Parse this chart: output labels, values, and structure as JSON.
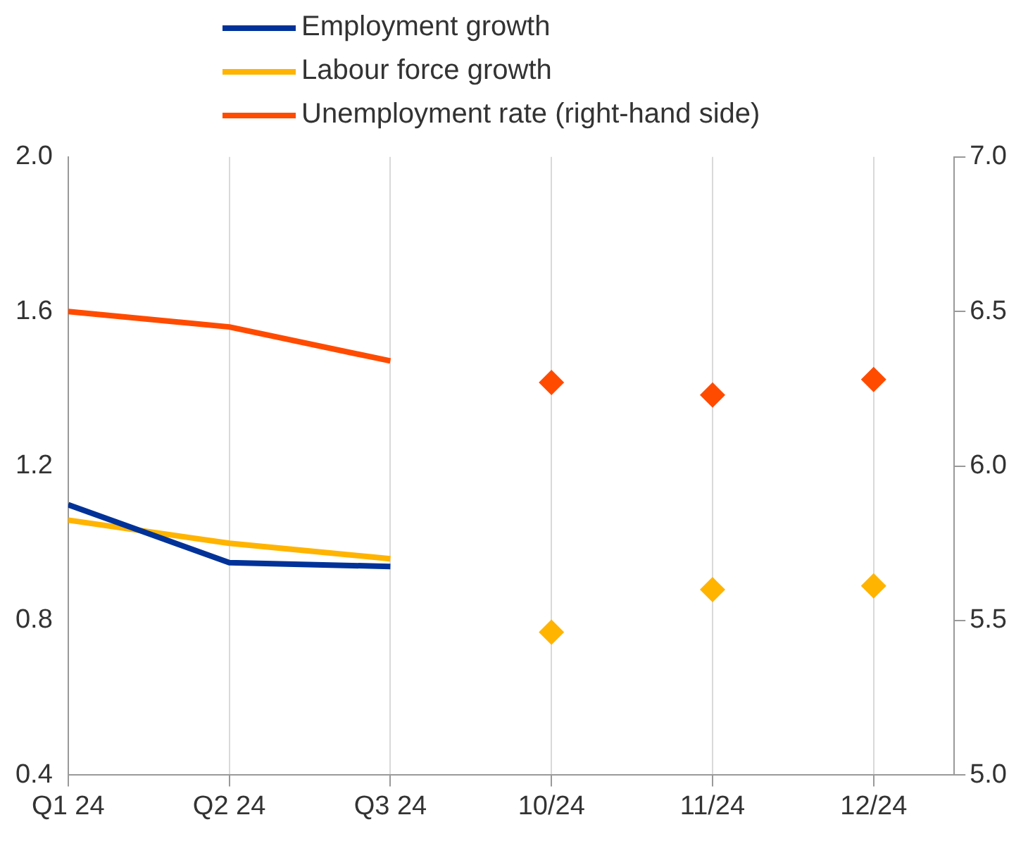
{
  "chart_data": {
    "type": "line",
    "categories": [
      "Q1 24",
      "Q2 24",
      "Q3 24",
      "10/24",
      "11/24",
      "12/24"
    ],
    "series": [
      {
        "name": "Employment growth",
        "color": "#003299",
        "values": [
          1.1,
          0.95,
          0.94,
          null,
          null,
          null
        ]
      },
      {
        "name": "Labour force growth",
        "color": "#ffb400",
        "values": [
          1.06,
          1.0,
          0.96,
          null,
          null,
          null
        ]
      },
      {
        "name": "Unemployment rate (right-hand side)",
        "color": "#ff4b00",
        "axis": "y2",
        "values": [
          6.5,
          6.45,
          6.34,
          null,
          null,
          null
        ]
      },
      {
        "type": "scatter",
        "color": "#ffb400",
        "marker": "diamond",
        "values": [
          null,
          null,
          null,
          0.77,
          0.88,
          0.89
        ]
      },
      {
        "type": "scatter",
        "color": "#ff4b00",
        "marker": "diamond",
        "axis": "y2",
        "values": [
          null,
          null,
          null,
          6.27,
          6.23,
          6.28
        ]
      }
    ],
    "ylim": [
      0.4,
      2.0
    ],
    "yticks": [
      0.4,
      0.8,
      1.2,
      1.6,
      {
        "value": 2.0,
        "label": "2.0"
      }
    ],
    "y2lim": [
      5.0,
      7.0
    ],
    "y2ticks": [
      {
        "value": 5.0,
        "label": "5.0"
      },
      {
        "value": 5.5,
        "label": "5.5"
      },
      {
        "value": 6.0,
        "label": "6.0"
      },
      {
        "value": 6.5,
        "label": "6.5"
      },
      {
        "value": 7.0,
        "label": "7.0"
      }
    ],
    "grid": "x",
    "legend": "top",
    "marker": "none",
    "line_style": "solid"
  }
}
